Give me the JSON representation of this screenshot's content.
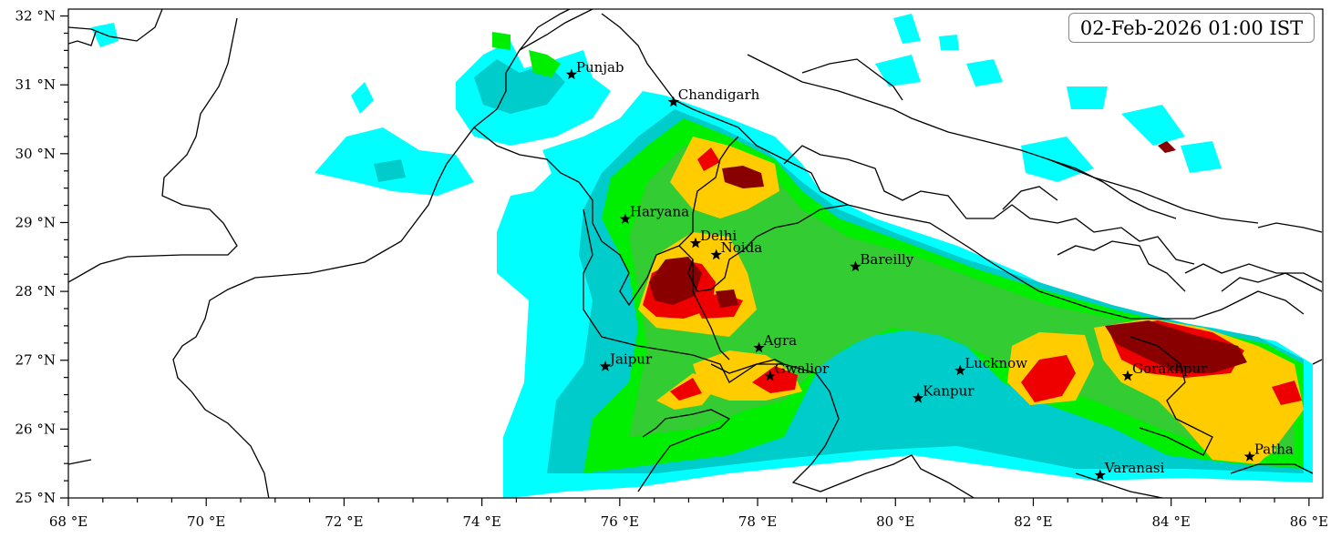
{
  "timestamp": "02-Feb-2026 01:00 IST",
  "map": {
    "lon_range": [
      68,
      86.2
    ],
    "lat_range": [
      25,
      32.1
    ],
    "x_ticks": [
      "68 °E",
      "70 °E",
      "72 °E",
      "74 °E",
      "76 °E",
      "78 °E",
      "80 °E",
      "82 °E",
      "84 °E",
      "86 °E"
    ],
    "y_ticks": [
      "32 °N",
      "31 °N",
      "30 °N",
      "29 °N",
      "28 °N",
      "27 °N",
      "26 °N",
      "25 °N"
    ],
    "fill_levels": [
      "#00ffff",
      "#00cccc",
      "#00ee00",
      "#33cc33",
      "#ffcc00",
      "#ee0000",
      "#880000"
    ]
  },
  "cities": [
    {
      "name": "Punjab",
      "lon": 75.3,
      "lat": 31.15
    },
    {
      "name": "Chandigarh",
      "lon": 76.78,
      "lat": 30.75
    },
    {
      "name": "Haryana",
      "lon": 76.08,
      "lat": 29.05
    },
    {
      "name": "Delhi",
      "lon": 77.1,
      "lat": 28.7
    },
    {
      "name": "Noida",
      "lon": 77.4,
      "lat": 28.53
    },
    {
      "name": "Bareilly",
      "lon": 79.42,
      "lat": 28.36
    },
    {
      "name": "Agra",
      "lon": 78.02,
      "lat": 27.18
    },
    {
      "name": "Jaipur",
      "lon": 75.79,
      "lat": 26.91
    },
    {
      "name": "Gwalior",
      "lon": 78.18,
      "lat": 26.77
    },
    {
      "name": "Lucknow",
      "lon": 80.94,
      "lat": 26.85
    },
    {
      "name": "Kanpur",
      "lon": 80.33,
      "lat": 26.45
    },
    {
      "name": "Gorakhpur",
      "lon": 83.37,
      "lat": 26.77
    },
    {
      "name": "Varanasi",
      "lon": 82.97,
      "lat": 25.33
    },
    {
      "name": "Patha",
      "lon": 85.14,
      "lat": 25.6
    }
  ]
}
